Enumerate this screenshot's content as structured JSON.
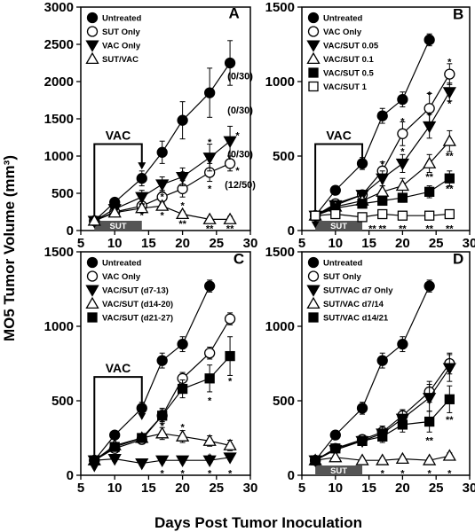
{
  "axis_titles": {
    "x": "Days Post Tumor Inoculation",
    "y": "MO5 Tumor Volume (mm³)"
  },
  "chart_data": [
    {
      "panel": "A",
      "type": "line",
      "xlim": [
        5,
        30
      ],
      "xticks": [
        5,
        10,
        15,
        20,
        25,
        30
      ],
      "ylim": [
        0,
        3000
      ],
      "yticks": [
        0,
        500,
        1000,
        1500,
        2000,
        2500,
        3000
      ],
      "legend_position": "top-left",
      "series": [
        {
          "name": "Untreated",
          "marker": "circle-filled",
          "x": [
            7,
            10,
            14,
            17,
            20,
            24,
            27
          ],
          "y": [
            130,
            380,
            700,
            1050,
            1480,
            1850,
            2250
          ],
          "err": [
            0,
            40,
            100,
            150,
            250,
            330,
            300
          ]
        },
        {
          "name": "SUT Only",
          "marker": "circle-open",
          "x": [
            7,
            10,
            14,
            17,
            20,
            24,
            27
          ],
          "y": [
            130,
            250,
            330,
            450,
            560,
            780,
            900
          ],
          "err": [
            0,
            30,
            60,
            90,
            110,
            120,
            100
          ]
        },
        {
          "name": "VAC Only",
          "marker": "triangle-down-filled",
          "x": [
            7,
            10,
            14,
            17,
            20,
            24,
            27
          ],
          "y": [
            130,
            290,
            450,
            620,
            720,
            980,
            1200
          ],
          "err": [
            0,
            40,
            90,
            100,
            120,
            180,
            200
          ]
        },
        {
          "name": "SUT/VAC",
          "marker": "triangle-up-open",
          "x": [
            7,
            10,
            14,
            17,
            20,
            24,
            27
          ],
          "y": [
            130,
            240,
            300,
            330,
            220,
            150,
            150
          ],
          "err": [
            0,
            30,
            50,
            50,
            40,
            30,
            40
          ]
        }
      ],
      "annotations": [
        {
          "text": "A",
          "x": 27.6,
          "y": 2850
        },
        {
          "text": "(0/30)",
          "x": 28.5,
          "y": 2030
        },
        {
          "text": "(0/30)",
          "x": 28.5,
          "y": 1570
        },
        {
          "text": "(0/30)",
          "x": 28.5,
          "y": 980
        },
        {
          "text": "(12/50)",
          "x": 28.5,
          "y": 570
        }
      ],
      "significance": [
        {
          "text": "*",
          "x": 14,
          "y": 220
        },
        {
          "text": "*",
          "x": 17,
          "y": 470
        },
        {
          "text": "*",
          "x": 17,
          "y": 220
        },
        {
          "text": "*",
          "x": 20,
          "y": 780
        },
        {
          "text": "*",
          "x": 20,
          "y": 350
        },
        {
          "text": "**",
          "x": 20,
          "y": 110
        },
        {
          "text": "*",
          "x": 24,
          "y": 1200
        },
        {
          "text": "*",
          "x": 24,
          "y": 580
        },
        {
          "text": "**",
          "x": 24,
          "y": 40
        },
        {
          "text": "*",
          "x": 28.1,
          "y": 1290
        },
        {
          "text": "*",
          "x": 28.1,
          "y": 820
        },
        {
          "text": "**",
          "x": 27,
          "y": 40
        }
      ],
      "vac_marker": {
        "label": "VAC",
        "x_start": 7,
        "x_end": 14,
        "y_top": 1160,
        "y_arrow_end_start": 30,
        "y_arrow_end_end": 820
      },
      "sut_bar": {
        "label": "SUT",
        "x_start": 7,
        "x_end": 14
      }
    },
    {
      "panel": "B",
      "type": "line",
      "xlim": [
        5,
        30
      ],
      "xticks": [
        5,
        10,
        15,
        20,
        25,
        30
      ],
      "ylim": [
        0,
        1500
      ],
      "yticks": [
        0,
        500,
        1000,
        1500
      ],
      "legend_position": "top-left",
      "series": [
        {
          "name": "Untreated",
          "marker": "circle-filled",
          "x": [
            7,
            10,
            14,
            17,
            20,
            24
          ],
          "y": [
            100,
            270,
            450,
            770,
            880,
            1280
          ],
          "err": [
            0,
            20,
            40,
            50,
            50,
            40
          ]
        },
        {
          "name": "VAC Only",
          "marker": "circle-open",
          "x": [
            7,
            10,
            14,
            17,
            20,
            24,
            27
          ],
          "y": [
            100,
            180,
            240,
            400,
            650,
            820,
            1050
          ],
          "err": [
            0,
            20,
            30,
            60,
            80,
            100,
            70
          ]
        },
        {
          "name": "VAC/SUT 0.05",
          "marker": "triangle-down-filled",
          "x": [
            7,
            10,
            14,
            17,
            20,
            24,
            27
          ],
          "y": [
            100,
            170,
            240,
            350,
            450,
            700,
            930
          ],
          "err": [
            0,
            20,
            30,
            50,
            60,
            80,
            60
          ]
        },
        {
          "name": "VAC/SUT 0.1",
          "marker": "triangle-up-open",
          "x": [
            7,
            10,
            14,
            17,
            20,
            24,
            27
          ],
          "y": [
            100,
            160,
            200,
            260,
            300,
            450,
            600
          ],
          "err": [
            0,
            20,
            25,
            40,
            50,
            60,
            70
          ]
        },
        {
          "name": "VAC/SUT 0.5",
          "marker": "square-filled",
          "x": [
            7,
            10,
            14,
            17,
            20,
            24,
            27
          ],
          "y": [
            100,
            150,
            180,
            200,
            220,
            260,
            350
          ],
          "err": [
            0,
            20,
            25,
            30,
            30,
            40,
            50
          ]
        },
        {
          "name": "VAC/SUT 1",
          "marker": "square-open",
          "x": [
            7,
            10,
            14,
            17,
            20,
            24,
            27
          ],
          "y": [
            100,
            110,
            90,
            110,
            100,
            100,
            110
          ],
          "err": [
            0,
            15,
            15,
            15,
            15,
            15,
            15
          ]
        }
      ],
      "annotations": [
        {
          "text": "B",
          "x": 28.3,
          "y": 1420
        }
      ],
      "significance": [
        {
          "text": "*",
          "x": 14,
          "y": 185
        },
        {
          "text": "**",
          "x": 15.5,
          "y": 20
        },
        {
          "text": "*",
          "x": 17,
          "y": 455
        },
        {
          "text": "*",
          "x": 17,
          "y": 320
        },
        {
          "text": "**",
          "x": 17,
          "y": 20
        },
        {
          "text": "*",
          "x": 20,
          "y": 740
        },
        {
          "text": "*",
          "x": 20,
          "y": 540
        },
        {
          "text": "**",
          "x": 20,
          "y": 230
        },
        {
          "text": "**",
          "x": 20,
          "y": 20
        },
        {
          "text": "*",
          "x": 24,
          "y": 920
        },
        {
          "text": "*",
          "x": 24,
          "y": 780
        },
        {
          "text": "**",
          "x": 24,
          "y": 370
        },
        {
          "text": "**",
          "x": 24,
          "y": 20
        },
        {
          "text": "*",
          "x": 27,
          "y": 1140
        },
        {
          "text": "*",
          "x": 27,
          "y": 860
        },
        {
          "text": "**",
          "x": 27,
          "y": 510
        },
        {
          "text": "**",
          "x": 27,
          "y": 290
        },
        {
          "text": "**",
          "x": 27,
          "y": 20
        }
      ],
      "vac_marker": {
        "label": "VAC",
        "x_start": 7,
        "x_end": 14,
        "y_top": 580,
        "y_arrow_end_start": 15,
        "y_arrow_end_end": 410
      },
      "sut_bar": {
        "label": "SUT",
        "x_start": 7,
        "x_end": 14
      }
    },
    {
      "panel": "C",
      "type": "line",
      "xlim": [
        5,
        30
      ],
      "xticks": [
        5,
        10,
        15,
        20,
        25,
        30
      ],
      "ylim": [
        0,
        1500
      ],
      "yticks": [
        0,
        500,
        1000,
        1500
      ],
      "legend_position": "top-left",
      "series": [
        {
          "name": "Untreated",
          "marker": "circle-filled",
          "x": [
            7,
            10,
            14,
            17,
            20,
            24
          ],
          "y": [
            100,
            270,
            450,
            770,
            880,
            1270
          ],
          "err": [
            0,
            20,
            40,
            50,
            50,
            40
          ]
        },
        {
          "name": "VAC Only",
          "marker": "circle-open",
          "x": [
            7,
            10,
            14,
            17,
            20,
            24,
            27
          ],
          "y": [
            100,
            180,
            240,
            400,
            650,
            820,
            1050
          ],
          "err": [
            0,
            20,
            30,
            40,
            40,
            40,
            40
          ]
        },
        {
          "name": "VAC/SUT (d7-13)",
          "marker": "triangle-down-filled",
          "x": [
            7,
            10,
            14,
            17,
            20,
            24,
            27
          ],
          "y": [
            100,
            110,
            80,
            100,
            100,
            100,
            120
          ],
          "err": [
            0,
            15,
            15,
            15,
            15,
            15,
            15
          ]
        },
        {
          "name": "VAC/SUT (d14-20)",
          "marker": "triangle-up-open",
          "x": [
            7,
            10,
            14,
            17,
            20,
            24,
            27
          ],
          "y": [
            100,
            200,
            250,
            280,
            260,
            230,
            200
          ],
          "err": [
            0,
            20,
            25,
            40,
            40,
            35,
            35
          ]
        },
        {
          "name": "VAC/SUT (d21-27)",
          "marker": "square-filled",
          "x": [
            7,
            10,
            14,
            17,
            20,
            24,
            27
          ],
          "y": [
            100,
            190,
            250,
            400,
            580,
            650,
            800
          ],
          "err": [
            0,
            20,
            30,
            50,
            60,
            90,
            130
          ]
        }
      ],
      "annotations": [
        {
          "text": "C",
          "x": 28.3,
          "y": 1420
        }
      ],
      "significance": [
        {
          "text": "*",
          "x": 17,
          "y": 340
        },
        {
          "text": "*",
          "x": 17,
          "y": 20
        },
        {
          "text": "*",
          "x": 20,
          "y": 330
        },
        {
          "text": "*",
          "x": 20,
          "y": 20
        },
        {
          "text": "*",
          "x": 24,
          "y": 510
        },
        {
          "text": "*",
          "x": 24,
          "y": 130
        },
        {
          "text": "*",
          "x": 24,
          "y": 20
        },
        {
          "text": "*",
          "x": 27,
          "y": 640
        },
        {
          "text": "*",
          "x": 27,
          "y": 110
        },
        {
          "text": "*",
          "x": 27,
          "y": 20
        }
      ],
      "vac_marker": {
        "label": "VAC",
        "x_start": 7,
        "x_end": 14,
        "y_top": 660,
        "y_arrow_end_start": 20,
        "y_arrow_end_end": 370
      }
    },
    {
      "panel": "D",
      "type": "line",
      "xlim": [
        5,
        30
      ],
      "xticks": [
        5,
        10,
        15,
        20,
        25,
        30
      ],
      "ylim": [
        0,
        1500
      ],
      "yticks": [
        0,
        500,
        1000,
        1500
      ],
      "legend_position": "top-left",
      "series": [
        {
          "name": "Untreated",
          "marker": "circle-filled",
          "x": [
            7,
            10,
            14,
            17,
            20,
            24
          ],
          "y": [
            100,
            270,
            450,
            770,
            880,
            1270
          ],
          "err": [
            0,
            20,
            40,
            50,
            50,
            40
          ]
        },
        {
          "name": "SUT Only",
          "marker": "circle-open",
          "x": [
            7,
            10,
            14,
            17,
            20,
            24,
            27
          ],
          "y": [
            100,
            180,
            240,
            290,
            400,
            560,
            750
          ],
          "err": [
            0,
            20,
            30,
            40,
            40,
            70,
            70
          ]
        },
        {
          "name": "SUT/VAC d7 Only",
          "marker": "triangle-down-filled",
          "x": [
            7,
            10,
            14,
            17,
            20,
            24,
            27
          ],
          "y": [
            100,
            170,
            230,
            280,
            380,
            520,
            720
          ],
          "err": [
            0,
            20,
            30,
            50,
            60,
            90,
            90
          ]
        },
        {
          "name": "SUT/VAC d7/14",
          "marker": "triangle-up-open",
          "x": [
            7,
            10,
            14,
            17,
            20,
            24,
            27
          ],
          "y": [
            100,
            120,
            100,
            100,
            110,
            100,
            130
          ],
          "err": [
            0,
            15,
            15,
            15,
            15,
            15,
            20
          ]
        },
        {
          "name": "SUT/VAC d14/21",
          "marker": "square-filled",
          "x": [
            7,
            10,
            14,
            17,
            20,
            24,
            27
          ],
          "y": [
            100,
            180,
            230,
            260,
            340,
            360,
            510
          ],
          "err": [
            0,
            20,
            30,
            40,
            50,
            70,
            90
          ]
        }
      ],
      "annotations": [
        {
          "text": "D",
          "x": 28.3,
          "y": 1420
        }
      ],
      "significance": [
        {
          "text": "*",
          "x": 17,
          "y": 20
        },
        {
          "text": "*",
          "x": 20,
          "y": 20
        },
        {
          "text": "**",
          "x": 24,
          "y": 240
        },
        {
          "text": "*",
          "x": 24,
          "y": 20
        },
        {
          "text": "**",
          "x": 27,
          "y": 380
        },
        {
          "text": "*",
          "x": 27,
          "y": 20
        }
      ],
      "sut_bar": {
        "label": "SUT",
        "x_start": 7,
        "x_end": 14
      }
    }
  ]
}
